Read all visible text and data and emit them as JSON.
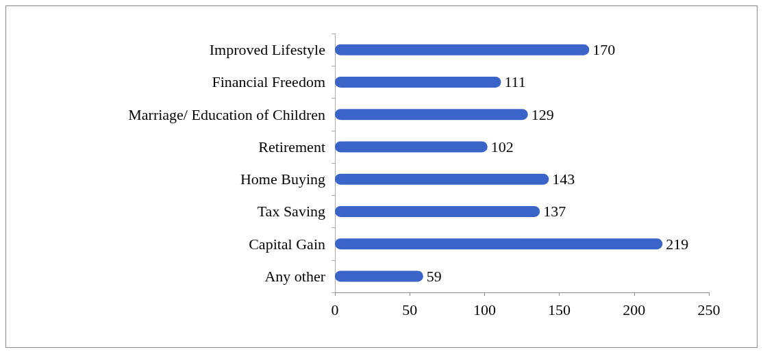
{
  "chart_data": {
    "type": "bar",
    "orientation": "horizontal",
    "categories": [
      "Improved Lifestyle",
      "Financial Freedom",
      "Marriage/ Education of Children",
      "Retirement",
      "Home Buying",
      "Tax Saving",
      "Capital Gain",
      "Any other"
    ],
    "values": [
      170,
      111,
      129,
      102,
      143,
      137,
      219,
      59
    ],
    "color": "#3a64c8",
    "data_labels": true,
    "grid": false,
    "xlim": [
      0,
      250
    ],
    "xticks": [
      0,
      50,
      100,
      150,
      200,
      250
    ]
  }
}
